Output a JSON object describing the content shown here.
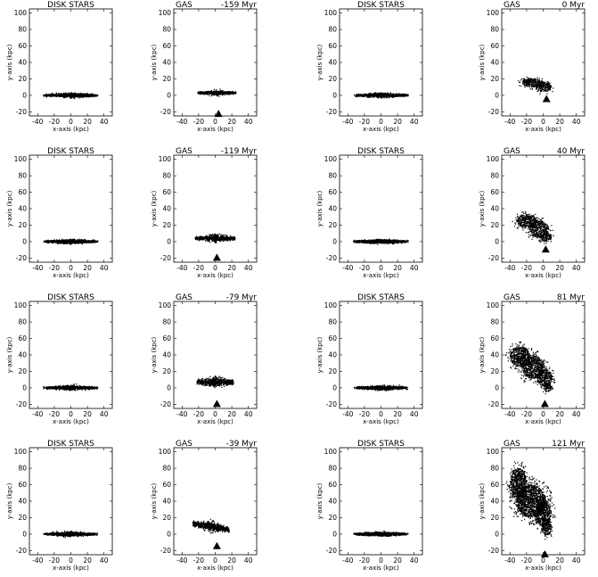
{
  "chart_data": {
    "type": "scatter",
    "layout": "4x4 grid of panels",
    "xlabel": "x-axis (kpc)",
    "ylabel": "y-axis (kpc)",
    "xlim": [
      -50,
      50
    ],
    "ylim": [
      -25,
      105
    ],
    "xticks": [
      -40,
      -20,
      0,
      20,
      40
    ],
    "yticks": [
      -20,
      0,
      20,
      40,
      60,
      80,
      100
    ],
    "colors": {
      "points": "#000000",
      "axes": "#000000",
      "background": "#ffffff"
    },
    "rows": [
      {
        "time": "-159 Myr",
        "panels": [
          {
            "title": "DISK STARS",
            "kind": "disk",
            "center": [
              0,
              0
            ],
            "half_width": 30,
            "half_height": 2
          },
          {
            "title": "GAS",
            "time_label": "-159 Myr",
            "kind": "gas",
            "center": [
              2,
              3
            ],
            "half_width": 23,
            "half_height": 2,
            "marker": [
              4,
              -23
            ]
          },
          {
            "title": "DISK STARS",
            "kind": "disk",
            "center": [
              0,
              0
            ],
            "half_width": 30,
            "half_height": 2
          },
          {
            "title": "GAS",
            "time_label": "0 Myr",
            "kind": "cloud",
            "marker": [
              4,
              -5
            ],
            "cloud": [
              {
                "center": [
                  -12,
                  15
                ],
                "rx": 13,
                "ry": 5
              },
              {
                "center": [
                  0,
                  10
                ],
                "rx": 10,
                "ry": 6
              },
              {
                "center": [
                  -18,
                  18
                ],
                "rx": 6,
                "ry": 3
              }
            ]
          }
        ]
      },
      {
        "time": "-119 Myr",
        "panels": [
          {
            "title": "DISK STARS",
            "kind": "disk",
            "center": [
              0,
              0
            ],
            "half_width": 30,
            "half_height": 2
          },
          {
            "title": "GAS",
            "time_label": "-119 Myr",
            "kind": "gas",
            "center": [
              0,
              4
            ],
            "half_width": 24,
            "half_height": 3,
            "marker": [
              2,
              -20
            ]
          },
          {
            "title": "DISK STARS",
            "kind": "disk",
            "center": [
              0,
              0
            ],
            "half_width": 30,
            "half_height": 2
          },
          {
            "title": "GAS",
            "time_label": "40 Myr",
            "kind": "cloud",
            "marker": [
              3,
              -10
            ],
            "cloud": [
              {
                "center": [
                  -20,
                  25
                ],
                "rx": 12,
                "ry": 8
              },
              {
                "center": [
                  -5,
                  15
                ],
                "rx": 12,
                "ry": 10
              },
              {
                "center": [
                  3,
                  5
                ],
                "rx": 7,
                "ry": 5
              }
            ]
          }
        ]
      },
      {
        "time": "-79 Myr",
        "panels": [
          {
            "title": "DISK STARS",
            "kind": "disk",
            "center": [
              0,
              0
            ],
            "half_width": 30,
            "half_height": 2
          },
          {
            "title": "GAS",
            "time_label": "-79 Myr",
            "kind": "gas",
            "center": [
              0,
              7
            ],
            "half_width": 22,
            "half_height": 4,
            "marker": [
              2,
              -20
            ]
          },
          {
            "title": "DISK STARS",
            "kind": "disk",
            "center": [
              0,
              0
            ],
            "half_width": 30,
            "half_height": 2
          },
          {
            "title": "GAS",
            "time_label": "81 Myr",
            "kind": "cloud",
            "marker": [
              2,
              -20
            ],
            "cloud": [
              {
                "center": [
                  -28,
                  38
                ],
                "rx": 12,
                "ry": 12
              },
              {
                "center": [
                  -12,
                  25
                ],
                "rx": 14,
                "ry": 14
              },
              {
                "center": [
                  2,
                  12
                ],
                "rx": 9,
                "ry": 10
              },
              {
                "center": [
                  5,
                  0
                ],
                "rx": 5,
                "ry": 5
              }
            ]
          }
        ]
      },
      {
        "time": "-39 Myr",
        "panels": [
          {
            "title": "DISK STARS",
            "kind": "disk",
            "center": [
              0,
              0
            ],
            "half_width": 30,
            "half_height": 2
          },
          {
            "title": "GAS",
            "time_label": "-39 Myr",
            "kind": "gas_tilted",
            "center": [
              -5,
              9
            ],
            "half_width": 22,
            "half_height": 4,
            "marker": [
              2,
              -15
            ]
          },
          {
            "title": "DISK STARS",
            "kind": "disk",
            "center": [
              0,
              0
            ],
            "half_width": 30,
            "half_height": 2
          },
          {
            "title": "GAS",
            "time_label": "121 Myr",
            "kind": "cloud",
            "marker": [
              2,
              -25
            ],
            "cloud": [
              {
                "center": [
                  -30,
                  62
                ],
                "rx": 10,
                "ry": 18
              },
              {
                "center": [
                  -15,
                  40
                ],
                "rx": 18,
                "ry": 20
              },
              {
                "center": [
                  0,
                  25
                ],
                "rx": 10,
                "ry": 15
              },
              {
                "center": [
                  4,
                  8
                ],
                "rx": 6,
                "ry": 10
              }
            ]
          }
        ]
      }
    ]
  }
}
